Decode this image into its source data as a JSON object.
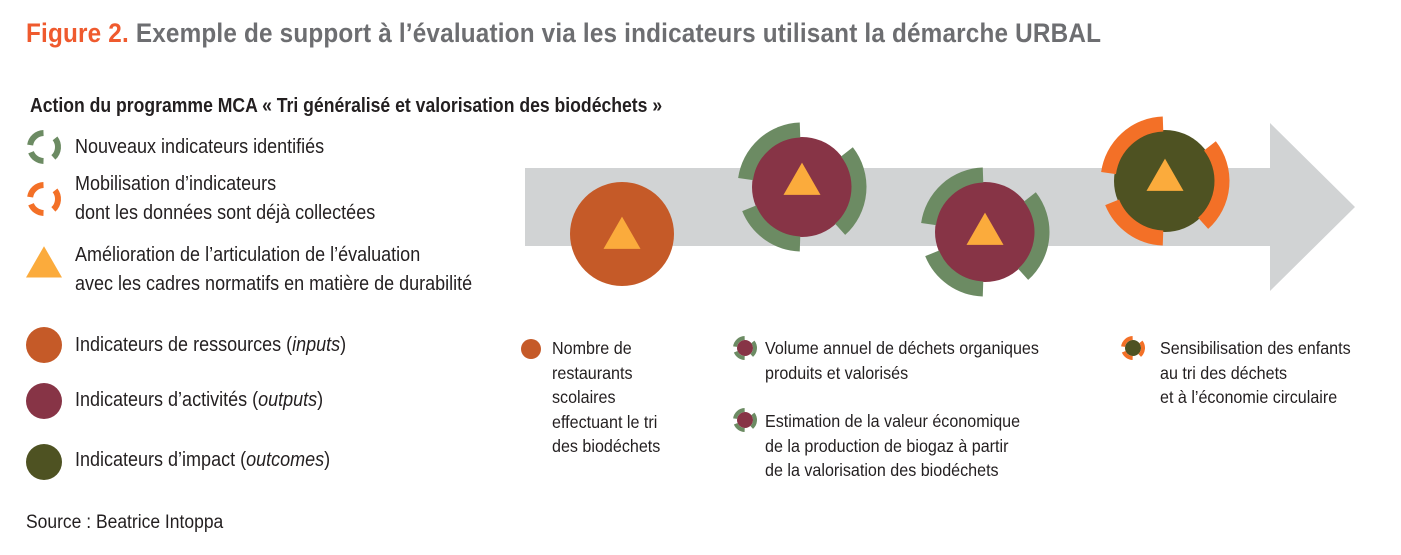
{
  "title": {
    "figure_label": "Figure 2.",
    "text": "Exemple de support à l’évaluation via les indicateurs utilisant la démarche URBAL"
  },
  "subtitle": "Action du programme MCA « Tri généralisé et valorisation des biodéchets  »",
  "legend": [
    {
      "icon": "green-ring-icon",
      "lines": [
        "Nouveaux indicateurs identifiés"
      ]
    },
    {
      "icon": "orange-ring-icon",
      "lines": [
        "Mobilisation d’indicateurs",
        "dont les données sont déjà collectées"
      ]
    },
    {
      "icon": "triangle-icon",
      "lines": [
        "Amélioration de l’articulation de l’évaluation",
        "avec les cadres normatifs en matière de durabilité"
      ]
    },
    {
      "icon": "resource-circle-icon",
      "text": "Indicateurs de ressources (",
      "em": "inputs",
      "end": ")"
    },
    {
      "icon": "activity-circle-icon",
      "text": "Indicateurs d’activités  (",
      "em": "outputs",
      "end": ")"
    },
    {
      "icon": "impact-circle-icon",
      "text": "Indicateurs d’impact (",
      "em": "outcomes",
      "end": ")"
    }
  ],
  "labels": [
    {
      "lines": [
        "Nombre de",
        "restaurants",
        "scolaires",
        "effectuant le tri",
        "des biodéchets"
      ]
    },
    {
      "lines": [
        "Volume annuel de déchets organiques",
        "produits et valorisés"
      ]
    },
    {
      "lines": [
        "Estimation de la valeur économique",
        "de la production de biogaz à partir",
        "de la valorisation des biodéchets"
      ]
    },
    {
      "lines": [
        "Sensibilisation des enfants",
        "au tri des déchets",
        "et à l’économie circulaire"
      ]
    }
  ],
  "source": "Source : Beatrice Intoppa",
  "colors": {
    "green": "#6c8b63",
    "orange": "#f37027",
    "resource": "#c55a28",
    "activity": "#873446",
    "impact": "#4e5222",
    "triangle": "#fbab3c",
    "arrow": "#d1d3d4",
    "title_accent": "#ef5a2e"
  }
}
